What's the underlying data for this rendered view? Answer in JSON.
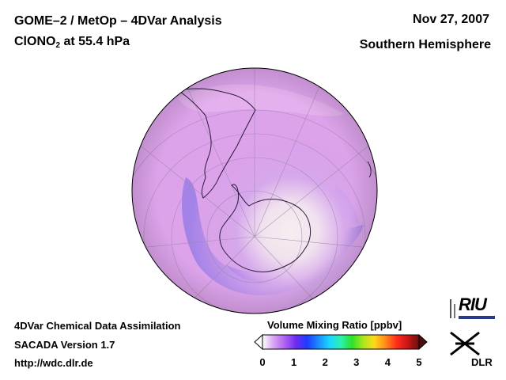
{
  "header": {
    "title_line1": "GOME–2 / MetOp – 4DVar Analysis",
    "species_main": "ClONO",
    "species_sub": "2",
    "species_rest": " at 55.4 hPa",
    "date": "Nov 27, 2007",
    "region": "Southern Hemisphere"
  },
  "footer": {
    "line1": "4DVar Chemical Data Assimilation",
    "line2": "SACADA Version 1.7",
    "line3": "http://wdc.dlr.de"
  },
  "colorbar": {
    "label": "Volume Mixing Ratio [ppbv]",
    "min": 0,
    "max": 5,
    "ticks": [
      "0",
      "1",
      "2",
      "3",
      "4",
      "5"
    ],
    "stops": [
      "#ffffff",
      "#d9a3f0",
      "#b060f0",
      "#6a2cf0",
      "#1c3cff",
      "#1a8cff",
      "#1ad8ff",
      "#2cf0b0",
      "#2ce02c",
      "#a8e81c",
      "#ffd81c",
      "#ff8a1c",
      "#ff2c1c",
      "#c81414",
      "#6a1010"
    ]
  },
  "logos": {
    "riu": "RIU",
    "dlr": "DLR"
  },
  "map": {
    "projection": "orthographic south polar",
    "colors": {
      "background_field": "#d9a0e8",
      "polar_low": "#f4ecee",
      "collar": "#8a70e8",
      "dark_band": "#6e58e0",
      "coast": "#2a1a3a",
      "grid": "#9a8aa8"
    }
  }
}
